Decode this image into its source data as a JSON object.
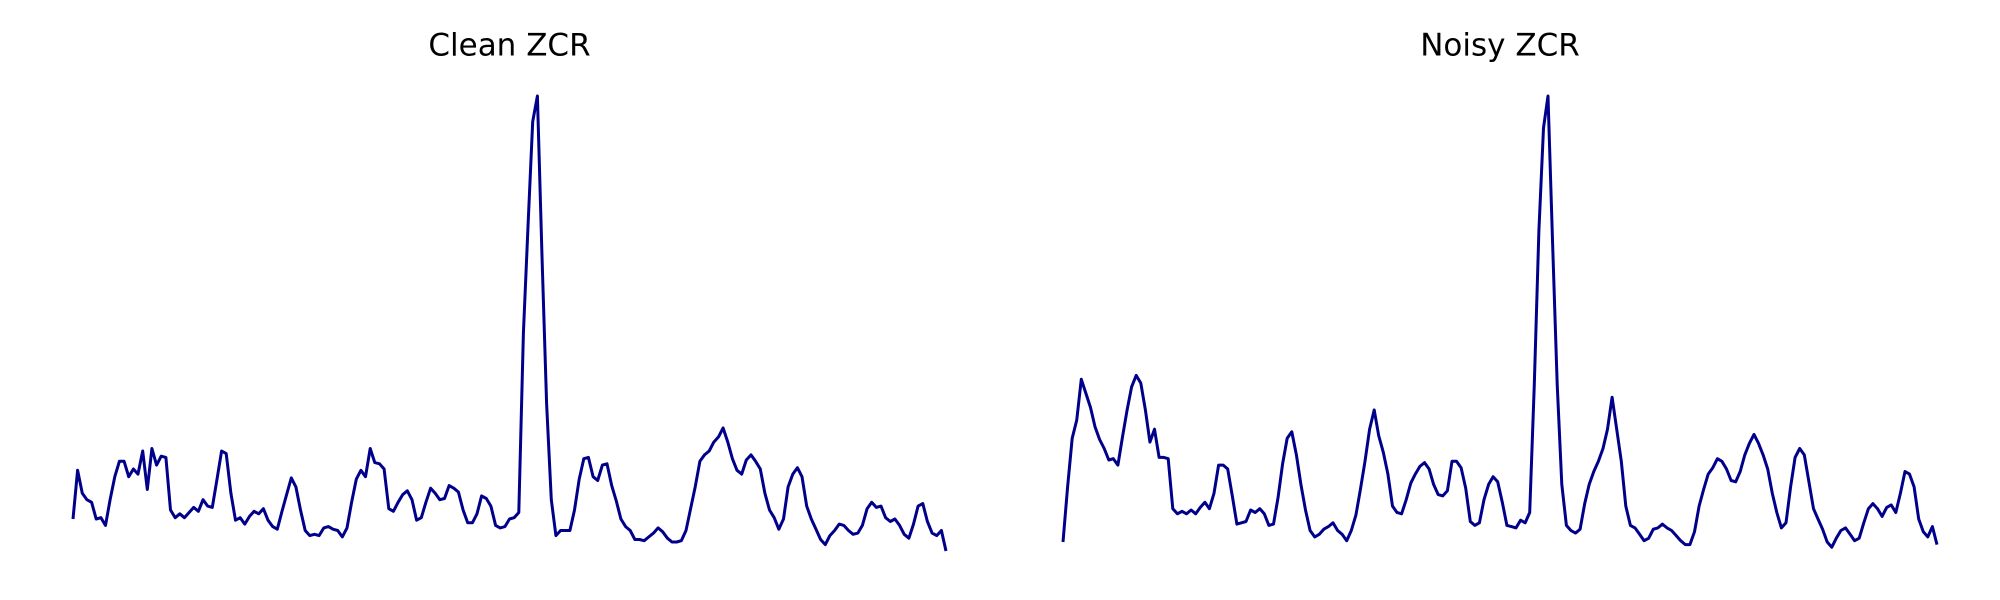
{
  "chart_data": [
    {
      "type": "line",
      "title": "Clean ZCR",
      "color": "#00008b",
      "ylim": [
        0,
        355
      ],
      "values": [
        25,
        63,
        45,
        40,
        38,
        25,
        26,
        20,
        40,
        58,
        70,
        70,
        58,
        64,
        60,
        78,
        48,
        80,
        67,
        74,
        73,
        32,
        26,
        29,
        26,
        30,
        34,
        31,
        40,
        35,
        34,
        56,
        78,
        76,
        45,
        24,
        26,
        21,
        27,
        31,
        29,
        33,
        24,
        19,
        17,
        31,
        44,
        57,
        50,
        32,
        16,
        12,
        13,
        12,
        18,
        19,
        17,
        16,
        11,
        18,
        38,
        56,
        63,
        58,
        80,
        69,
        68,
        64,
        33,
        31,
        38,
        44,
        47,
        40,
        24,
        26,
        38,
        49,
        45,
        40,
        41,
        51,
        49,
        46,
        32,
        22,
        22,
        29,
        43,
        41,
        35,
        20,
        18,
        19,
        25,
        26,
        30,
        170,
        255,
        335,
        355,
        230,
        115,
        40,
        12,
        16,
        16,
        16,
        32,
        56,
        72,
        73,
        58,
        55,
        67,
        68,
        51,
        39,
        25,
        19,
        16,
        9,
        9,
        8,
        11,
        14,
        18,
        15,
        10,
        7,
        7,
        8,
        16,
        33,
        50,
        70,
        75,
        78,
        85,
        89,
        96,
        85,
        72,
        63,
        60,
        71,
        75,
        70,
        64,
        45,
        32,
        26,
        17,
        25,
        50,
        60,
        65,
        58,
        35,
        25,
        17,
        9,
        5,
        12,
        16,
        21,
        20,
        16,
        13,
        14,
        20,
        33,
        38,
        34,
        35,
        26,
        23,
        25,
        20,
        13,
        10,
        21,
        35,
        37,
        23,
        14,
        12,
        16,
        0
      ]
    },
    {
      "type": "line",
      "title": "Noisy ZCR",
      "color": "#00008b",
      "ylim": [
        0,
        355
      ],
      "values": [
        7,
        50,
        88,
        102,
        134,
        123,
        112,
        97,
        87,
        80,
        71,
        72,
        67,
        89,
        110,
        128,
        137,
        131,
        110,
        85,
        95,
        73,
        73,
        72,
        33,
        29,
        31,
        29,
        32,
        29,
        34,
        38,
        33,
        45,
        67,
        67,
        64,
        43,
        21,
        22,
        23,
        32,
        30,
        33,
        29,
        20,
        21,
        42,
        68,
        88,
        93,
        75,
        52,
        32,
        16,
        11,
        13,
        17,
        19,
        22,
        16,
        13,
        8,
        16,
        28,
        48,
        70,
        95,
        110,
        90,
        77,
        60,
        35,
        30,
        29,
        40,
        53,
        60,
        66,
        69,
        64,
        52,
        44,
        43,
        47,
        70,
        70,
        65,
        49,
        23,
        20,
        22,
        40,
        52,
        58,
        54,
        38,
        20,
        19,
        18,
        24,
        22,
        30,
        130,
        250,
        330,
        355,
        240,
        130,
        52,
        20,
        16,
        14,
        17,
        37,
        52,
        62,
        70,
        80,
        95,
        120,
        95,
        70,
        35,
        20,
        18,
        13,
        8,
        10,
        17,
        18,
        21,
        18,
        16,
        12,
        8,
        5,
        5,
        15,
        35,
        48,
        60,
        65,
        72,
        70,
        64,
        55,
        54,
        62,
        75,
        84,
        91,
        84,
        75,
        64,
        45,
        30,
        18,
        22,
        50,
        73,
        80,
        75,
        54,
        33,
        25,
        17,
        7,
        3,
        10,
        16,
        18,
        13,
        8,
        10,
        22,
        33,
        37,
        33,
        27,
        34,
        36,
        30,
        45,
        62,
        60,
        50,
        25,
        15,
        11,
        19,
        5
      ]
    }
  ]
}
